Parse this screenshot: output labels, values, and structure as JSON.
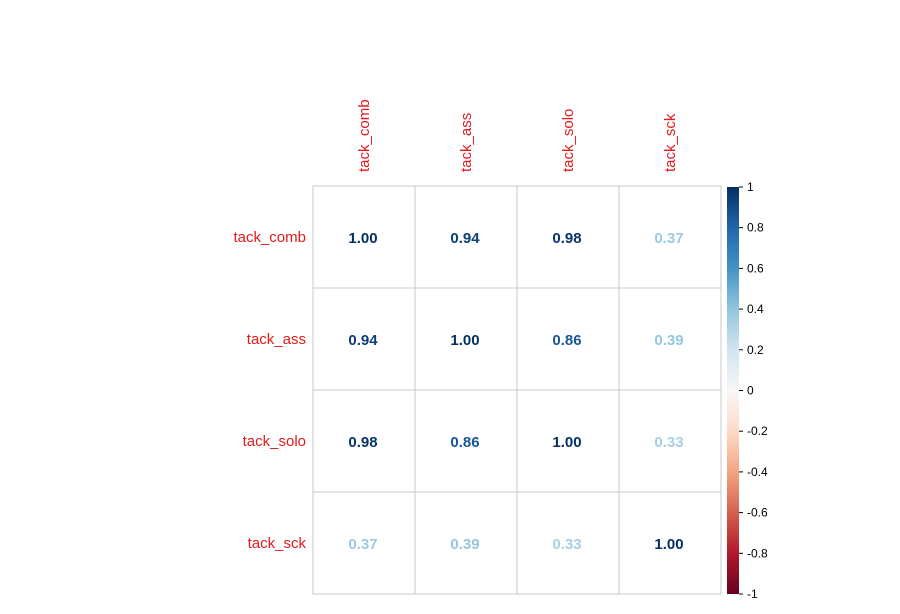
{
  "chart_data": {
    "type": "heatmap",
    "variables": [
      "tack_comb",
      "tack_ass",
      "tack_solo",
      "tack_sck"
    ],
    "matrix": [
      [
        1.0,
        0.94,
        0.98,
        0.37
      ],
      [
        0.94,
        1.0,
        0.86,
        0.39
      ],
      [
        0.98,
        0.86,
        1.0,
        0.33
      ],
      [
        0.37,
        0.39,
        0.33,
        1.0
      ]
    ],
    "value_format": "0.00",
    "colorbar": {
      "range": [
        -1,
        1
      ],
      "tick_labels": [
        "1",
        "0.8",
        "0.6",
        "0.4",
        "0.2",
        "0",
        "-0.2",
        "-0.4",
        "-0.6",
        "-0.8",
        "-1"
      ],
      "tick_values": [
        1,
        0.8,
        0.6,
        0.4,
        0.2,
        0,
        -0.2,
        -0.4,
        -0.6,
        -0.8,
        -1
      ]
    },
    "label_color": "#e41a1c",
    "palette": [
      "#67001f",
      "#b2182b",
      "#d6604d",
      "#f4a582",
      "#fddbc7",
      "#f7f7f7",
      "#d1e5f0",
      "#92c5de",
      "#4393c3",
      "#2166ac",
      "#053061"
    ],
    "grid": true
  }
}
